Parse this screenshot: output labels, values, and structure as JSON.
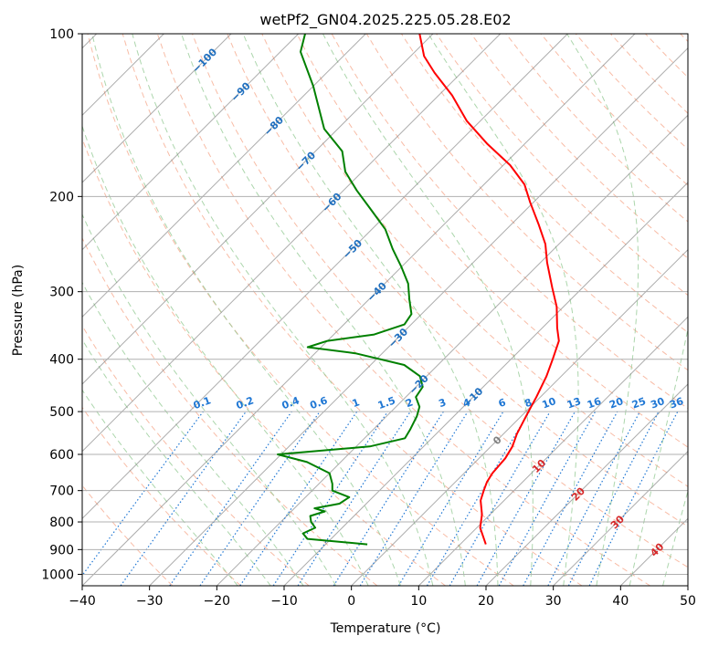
{
  "chart_data": {
    "type": "line",
    "title": "wetPf2_GN04.2025.225.05.28.E02",
    "xlabel": "Temperature (°C)",
    "ylabel": "Pressure (hPa)",
    "xlim": [
      -40,
      50
    ],
    "ylim": [
      1050,
      100
    ],
    "y_scale": "log",
    "grid": true,
    "x_ticks": [
      -40,
      -30,
      -20,
      -10,
      0,
      10,
      20,
      30,
      40,
      50
    ],
    "x_tick_labels": [
      "−40",
      "−30",
      "−20",
      "−10",
      "0",
      "10",
      "20",
      "30",
      "40",
      "50"
    ],
    "y_ticks": [
      100,
      200,
      300,
      400,
      500,
      600,
      700,
      800,
      900,
      1000
    ],
    "y_tick_labels": [
      "100",
      "200",
      "300",
      "400",
      "500",
      "600",
      "700",
      "800",
      "900",
      "1000"
    ],
    "colors": {
      "temperature": "#ff0000",
      "dewpoint": "#008000",
      "dry_adiabat": "#f5a080",
      "moist_adiabat": "#90c890",
      "mixing_ratio": "#1f77d4",
      "isotherm": "#808080",
      "grid": "#b0b0b0",
      "label_blue": "#1f6fbf",
      "label_red": "#d62728",
      "label_gray": "#808080"
    },
    "series": [
      {
        "name": "temperature",
        "color": "#ff0000",
        "points": [
          [
            13.8,
            880
          ],
          [
            10.5,
            820
          ],
          [
            8.8,
            775
          ],
          [
            6.5,
            730
          ],
          [
            5.5,
            700
          ],
          [
            4.7,
            675
          ],
          [
            4.2,
            650
          ],
          [
            3.9,
            610
          ],
          [
            3.2,
            580
          ],
          [
            2.0,
            550
          ],
          [
            0.4,
            500
          ],
          [
            -0.6,
            470
          ],
          [
            -2.2,
            430
          ],
          [
            -3.8,
            400
          ],
          [
            -5.6,
            370
          ],
          [
            -7.8,
            350
          ],
          [
            -11.0,
            320
          ],
          [
            -14.5,
            295
          ],
          [
            -19.0,
            265
          ],
          [
            -22.0,
            245
          ],
          [
            -26.0,
            225
          ],
          [
            -30.5,
            205
          ],
          [
            -34.0,
            190
          ],
          [
            -39.0,
            175
          ],
          [
            -45.5,
            160
          ],
          [
            -52.0,
            145
          ],
          [
            -58.0,
            130
          ],
          [
            -64.0,
            118
          ],
          [
            -68.0,
            110
          ],
          [
            -72.0,
            100
          ]
        ]
      },
      {
        "name": "dewpoint",
        "color": "#008000",
        "points": [
          [
            -3.8,
            880
          ],
          [
            -13.5,
            860
          ],
          [
            -15.0,
            840
          ],
          [
            -14.0,
            820
          ],
          [
            -15.5,
            800
          ],
          [
            -16.5,
            780
          ],
          [
            -15.0,
            765
          ],
          [
            -17.0,
            755
          ],
          [
            -14.0,
            740
          ],
          [
            -13.5,
            720
          ],
          [
            -17.0,
            700
          ],
          [
            -18.0,
            680
          ],
          [
            -20.0,
            650
          ],
          [
            -25.0,
            620
          ],
          [
            -30.5,
            600
          ],
          [
            -18.0,
            580
          ],
          [
            -14.0,
            560
          ],
          [
            -14.5,
            540
          ],
          [
            -15.5,
            510
          ],
          [
            -16.5,
            490
          ],
          [
            -18.5,
            470
          ],
          [
            -19.0,
            450
          ],
          [
            -21.0,
            430
          ],
          [
            -25.0,
            410
          ],
          [
            -34.0,
            390
          ],
          [
            -42.0,
            380
          ],
          [
            -40.0,
            370
          ],
          [
            -34.0,
            360
          ],
          [
            -31.0,
            345
          ],
          [
            -31.5,
            330
          ],
          [
            -34.0,
            310
          ],
          [
            -36.5,
            290
          ],
          [
            -40.0,
            270
          ],
          [
            -44.0,
            250
          ],
          [
            -48.0,
            230
          ],
          [
            -53.5,
            210
          ],
          [
            -58.0,
            195
          ],
          [
            -62.5,
            180
          ],
          [
            -66.0,
            165
          ],
          [
            -72.0,
            150
          ],
          [
            -80.0,
            125
          ],
          [
            -87.0,
            108
          ],
          [
            -89.0,
            100
          ]
        ]
      }
    ],
    "isotherm_labels": [
      "−100",
      "−90",
      "−80",
      "−70",
      "−60",
      "−50",
      "−40",
      "−30",
      "−20",
      "−10",
      "0",
      "10",
      "20",
      "30",
      "40"
    ],
    "mixing_ratio_labels": [
      "0.1",
      "0.2",
      "0.4",
      "0.6",
      "1",
      "1.5",
      "2",
      "3",
      "4",
      "6",
      "8",
      "10",
      "13",
      "16",
      "20",
      "25",
      "30",
      "36"
    ],
    "mixing_ratio_values": [
      0.1,
      0.2,
      0.4,
      0.6,
      1,
      1.5,
      2,
      3,
      4,
      6,
      8,
      10,
      13,
      16,
      20,
      25,
      30,
      36
    ]
  }
}
